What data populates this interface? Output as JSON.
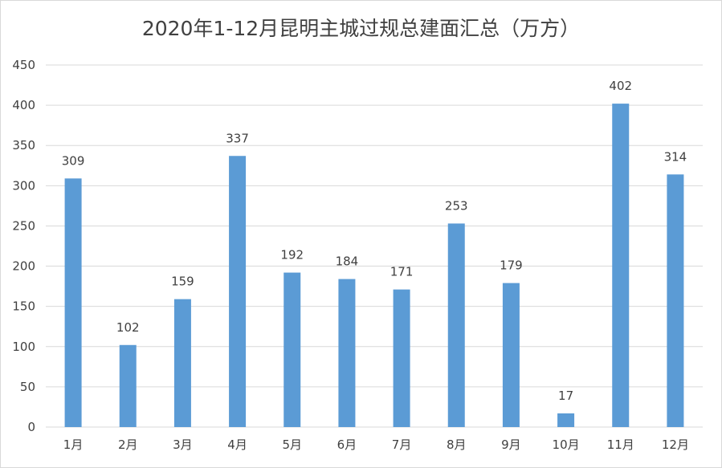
{
  "chart_data": {
    "type": "bar",
    "title": "2020年1-12月昆明主城过规总建面汇总（万方）",
    "categories": [
      "1月",
      "2月",
      "3月",
      "4月",
      "5月",
      "6月",
      "7月",
      "8月",
      "9月",
      "10月",
      "11月",
      "12月"
    ],
    "values": [
      309,
      102,
      159,
      337,
      192,
      184,
      171,
      253,
      179,
      17,
      402,
      314
    ],
    "ylim": [
      0,
      450
    ],
    "yticks": [
      0,
      50,
      100,
      150,
      200,
      250,
      300,
      350,
      400,
      450
    ],
    "xlabel": "",
    "ylabel": "",
    "grid": true,
    "legend": "none",
    "bar_color": "#5b9bd5",
    "grid_color": "#d9d9d9"
  }
}
